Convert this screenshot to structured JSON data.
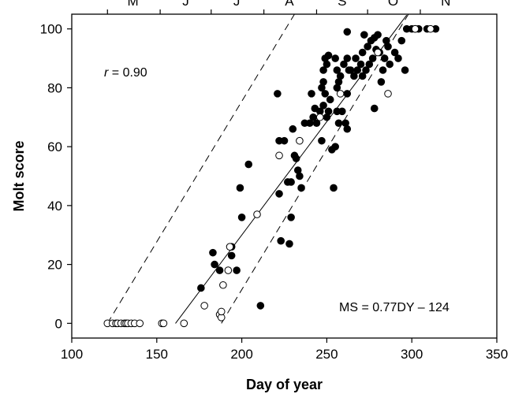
{
  "chart_data": {
    "type": "scatter",
    "title": "",
    "xlabel": "Day of year",
    "ylabel": "Molt score",
    "xlim": [
      100,
      350
    ],
    "ylim": [
      -5,
      105
    ],
    "x_ticks": [
      "100",
      "150",
      "200",
      "250",
      "300",
      "350"
    ],
    "y_ticks": [
      "0",
      "20",
      "40",
      "60",
      "80",
      "100"
    ],
    "x_tick_values": [
      100,
      150,
      200,
      250,
      300,
      350
    ],
    "y_tick_values": [
      0,
      20,
      40,
      60,
      80,
      100
    ],
    "grid": false,
    "top_axis": {
      "month_labels": [
        "M",
        "J",
        "J",
        "A",
        "S",
        "O",
        "N"
      ],
      "label_positions": [
        136,
        167,
        197,
        228,
        259,
        289,
        320
      ],
      "boundaries": [
        121,
        152,
        182,
        213,
        244,
        274,
        305
      ]
    },
    "annotations": {
      "r_symbol": "r",
      "r_value": " = 0.90",
      "equation": "MS = 0.77DY – 124"
    },
    "regression": {
      "slope": 0.77,
      "intercept": -124,
      "x": [
        161,
        297
      ]
    },
    "confidence_lines": [
      {
        "x": [
          121,
          231
        ],
        "y": [
          0,
          105
        ],
        "style": "dashed"
      },
      {
        "x": [
          188,
          298
        ],
        "y": [
          0,
          105
        ],
        "style": "dashed"
      }
    ],
    "series": [
      {
        "marker": "filled-circle",
        "points": [
          [
            176,
            12
          ],
          [
            183,
            24
          ],
          [
            184,
            20
          ],
          [
            187,
            18
          ],
          [
            194,
            23
          ],
          [
            194,
            26
          ],
          [
            197,
            18
          ],
          [
            199,
            46
          ],
          [
            200,
            36
          ],
          [
            204,
            54
          ],
          [
            211,
            6
          ],
          [
            221,
            78
          ],
          [
            222,
            44
          ],
          [
            222,
            62
          ],
          [
            223,
            28
          ],
          [
            225,
            62
          ],
          [
            227,
            48
          ],
          [
            228,
            27
          ],
          [
            229,
            48
          ],
          [
            229,
            36
          ],
          [
            230,
            66
          ],
          [
            231,
            57
          ],
          [
            232,
            56
          ],
          [
            233,
            52
          ],
          [
            234,
            50
          ],
          [
            235,
            46
          ],
          [
            237,
            68
          ],
          [
            240,
            68
          ],
          [
            241,
            78
          ],
          [
            242,
            70
          ],
          [
            243,
            73
          ],
          [
            244,
            68
          ],
          [
            246,
            72
          ],
          [
            247,
            62
          ],
          [
            247,
            80
          ],
          [
            248,
            74
          ],
          [
            248,
            82
          ],
          [
            248,
            86
          ],
          [
            249,
            90
          ],
          [
            249,
            78
          ],
          [
            250,
            88
          ],
          [
            250,
            70
          ],
          [
            251,
            91
          ],
          [
            251,
            72
          ],
          [
            252,
            76
          ],
          [
            253,
            59
          ],
          [
            254,
            46
          ],
          [
            255,
            90
          ],
          [
            255,
            60
          ],
          [
            256,
            86
          ],
          [
            256,
            80
          ],
          [
            256,
            72
          ],
          [
            257,
            82
          ],
          [
            257,
            68
          ],
          [
            258,
            84
          ],
          [
            259,
            72
          ],
          [
            260,
            88
          ],
          [
            261,
            68
          ],
          [
            262,
            90
          ],
          [
            262,
            78
          ],
          [
            262,
            66
          ],
          [
            262,
            99
          ],
          [
            263,
            86
          ],
          [
            264,
            86
          ],
          [
            266,
            84
          ],
          [
            267,
            90
          ],
          [
            268,
            86
          ],
          [
            270,
            88
          ],
          [
            271,
            92
          ],
          [
            271,
            84
          ],
          [
            272,
            98
          ],
          [
            273,
            86
          ],
          [
            274,
            94
          ],
          [
            275,
            88
          ],
          [
            276,
            96
          ],
          [
            277,
            90
          ],
          [
            278,
            73
          ],
          [
            278,
            97
          ],
          [
            279,
            93
          ],
          [
            280,
            98
          ],
          [
            281,
            92
          ],
          [
            282,
            82
          ],
          [
            283,
            86
          ],
          [
            284,
            90
          ],
          [
            285,
            96
          ],
          [
            286,
            94
          ],
          [
            287,
            88
          ],
          [
            290,
            92
          ],
          [
            292,
            90
          ],
          [
            294,
            96
          ],
          [
            296,
            86
          ],
          [
            297,
            100
          ],
          [
            300,
            100
          ],
          [
            302,
            100
          ],
          [
            304,
            100
          ],
          [
            309,
            100
          ],
          [
            314,
            100
          ]
        ]
      },
      {
        "marker": "open-circle",
        "points": [
          [
            121,
            0
          ],
          [
            124,
            0
          ],
          [
            126,
            0
          ],
          [
            127,
            0
          ],
          [
            129,
            0
          ],
          [
            131,
            0
          ],
          [
            132,
            0
          ],
          [
            133,
            0
          ],
          [
            135,
            0
          ],
          [
            137,
            0
          ],
          [
            140,
            0
          ],
          [
            153,
            0
          ],
          [
            154,
            0
          ],
          [
            166,
            0
          ],
          [
            178,
            6
          ],
          [
            187,
            3
          ],
          [
            188,
            2
          ],
          [
            188,
            4
          ],
          [
            189,
            13
          ],
          [
            192,
            18
          ],
          [
            193,
            26
          ],
          [
            209,
            37
          ],
          [
            222,
            57
          ],
          [
            234,
            62
          ],
          [
            246,
            70
          ],
          [
            258,
            78
          ],
          [
            280,
            92
          ],
          [
            286,
            78
          ],
          [
            302,
            100
          ],
          [
            311,
            100
          ]
        ]
      }
    ]
  }
}
